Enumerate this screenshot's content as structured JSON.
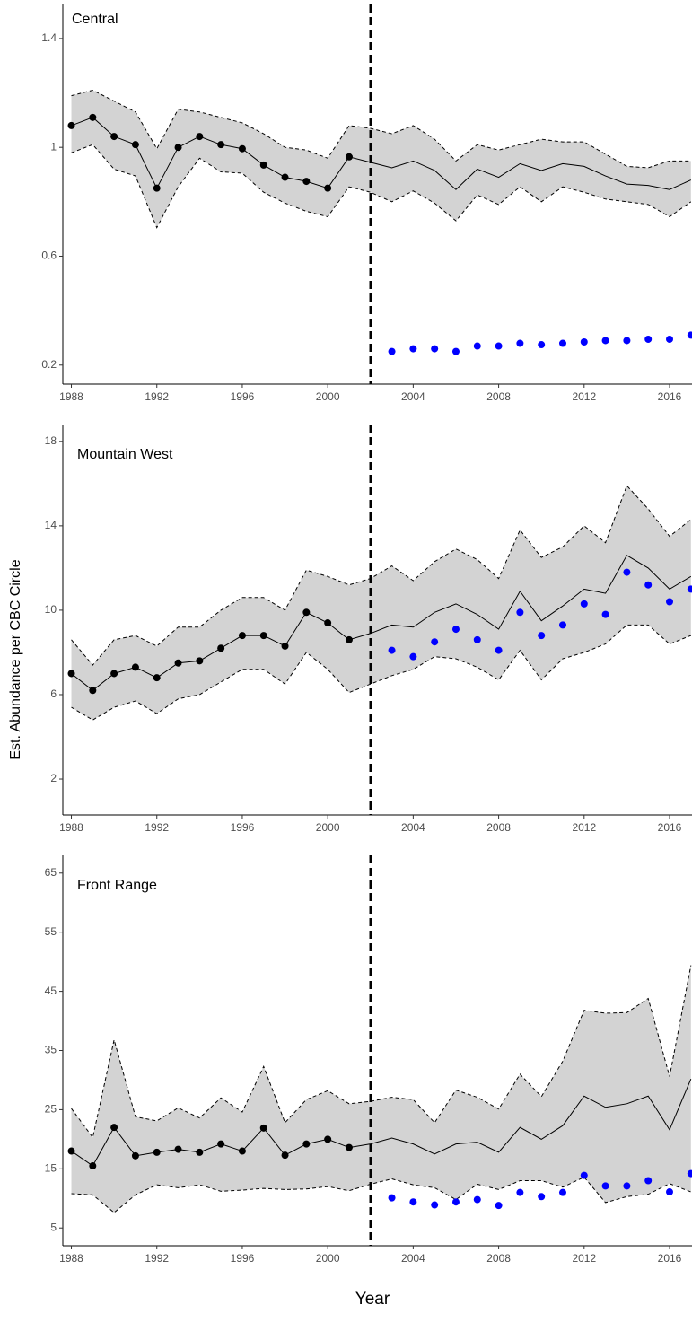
{
  "chart_data": [
    {
      "type": "line",
      "title": "Central",
      "x": [
        1988,
        1989,
        1990,
        1991,
        1992,
        1993,
        1994,
        1995,
        1996,
        1997,
        1998,
        1999,
        2000,
        2001,
        2002,
        2003,
        2004,
        2005,
        2006,
        2007,
        2008,
        2009,
        2010,
        2011,
        2012,
        2013,
        2014,
        2015,
        2016,
        2017
      ],
      "band": {
        "color": "#d3d3d3",
        "upper": [
          1.19,
          1.21,
          1.17,
          1.13,
          0.995,
          1.14,
          1.13,
          1.11,
          1.09,
          1.05,
          1.0,
          0.99,
          0.96,
          1.08,
          1.07,
          1.05,
          1.08,
          1.03,
          0.95,
          1.01,
          0.99,
          1.01,
          1.03,
          1.02,
          1.02,
          0.975,
          0.93,
          0.925,
          0.95,
          0.95
        ],
        "lower": [
          0.98,
          1.01,
          0.92,
          0.895,
          0.705,
          0.855,
          0.96,
          0.91,
          0.905,
          0.835,
          0.795,
          0.765,
          0.745,
          0.855,
          0.835,
          0.8,
          0.84,
          0.795,
          0.73,
          0.825,
          0.79,
          0.855,
          0.8,
          0.855,
          0.835,
          0.81,
          0.8,
          0.79,
          0.745,
          0.8
        ]
      },
      "series": [
        {
          "mark": "line",
          "color": "#000000",
          "values": [
            1.08,
            1.11,
            1.04,
            1.01,
            0.85,
            1.0,
            1.04,
            1.01,
            0.995,
            0.935,
            0.89,
            0.875,
            0.85,
            0.965,
            0.945,
            0.925,
            0.95,
            0.915,
            0.845,
            0.92,
            0.89,
            0.94,
            0.915,
            0.94,
            0.93,
            0.895,
            0.865,
            0.86,
            0.845,
            0.88
          ]
        },
        {
          "mark": "point",
          "color": "#000000",
          "values": [
            1.08,
            1.11,
            1.04,
            1.01,
            0.85,
            1.0,
            1.04,
            1.01,
            0.995,
            0.935,
            0.89,
            0.875,
            0.85,
            0.965,
            null,
            null,
            null,
            null,
            null,
            null,
            null,
            null,
            null,
            null,
            null,
            null,
            null,
            null,
            null,
            null
          ]
        },
        {
          "mark": "point",
          "color": "#0000ff",
          "values": [
            null,
            null,
            null,
            null,
            null,
            null,
            null,
            null,
            null,
            null,
            null,
            null,
            null,
            null,
            null,
            0.25,
            0.26,
            0.26,
            0.25,
            0.27,
            0.27,
            0.28,
            0.275,
            0.28,
            0.285,
            0.29,
            0.29,
            0.295,
            0.295,
            0.31
          ]
        }
      ],
      "reference_x": 2002,
      "xlim": [
        1987.6,
        2017.05
      ],
      "xticks": [
        1988,
        1992,
        1996,
        2000,
        2004,
        2008,
        2012,
        2016
      ],
      "ylim": [
        0.13,
        1.525
      ],
      "yticks": [
        0.2,
        0.6,
        1.0,
        1.4
      ]
    },
    {
      "type": "line",
      "title": "Mountain West",
      "y_label": "Est. Abundance per CBC Circle",
      "x": [
        1988,
        1989,
        1990,
        1991,
        1992,
        1993,
        1994,
        1995,
        1996,
        1997,
        1998,
        1999,
        2000,
        2001,
        2002,
        2003,
        2004,
        2005,
        2006,
        2007,
        2008,
        2009,
        2010,
        2011,
        2012,
        2013,
        2014,
        2015,
        2016,
        2017
      ],
      "band": {
        "color": "#d3d3d3",
        "upper": [
          8.6,
          7.4,
          8.6,
          8.8,
          8.3,
          9.2,
          9.2,
          10.0,
          10.6,
          10.6,
          10.0,
          11.9,
          11.6,
          11.2,
          11.5,
          12.1,
          11.4,
          12.3,
          12.9,
          12.4,
          11.5,
          13.8,
          12.5,
          13.0,
          14.0,
          13.2,
          15.9,
          14.8,
          13.5,
          14.3
        ],
        "lower": [
          5.4,
          4.8,
          5.4,
          5.7,
          5.1,
          5.8,
          6.0,
          6.6,
          7.2,
          7.2,
          6.5,
          8.0,
          7.2,
          6.1,
          6.5,
          6.9,
          7.2,
          7.8,
          7.7,
          7.3,
          6.7,
          8.1,
          6.7,
          7.7,
          8.0,
          8.4,
          9.3,
          9.3,
          8.4,
          8.8
        ]
      },
      "series": [
        {
          "mark": "line",
          "color": "#000000",
          "values": [
            7.0,
            6.2,
            7.0,
            7.3,
            6.8,
            7.5,
            7.6,
            8.2,
            8.8,
            8.8,
            8.3,
            9.9,
            9.4,
            8.6,
            8.9,
            9.3,
            9.2,
            9.9,
            10.3,
            9.8,
            9.1,
            10.9,
            9.5,
            10.2,
            11.0,
            10.8,
            12.6,
            12.0,
            11.0,
            11.6
          ]
        },
        {
          "mark": "point",
          "color": "#000000",
          "values": [
            7.0,
            6.2,
            7.0,
            7.3,
            6.8,
            7.5,
            7.6,
            8.2,
            8.8,
            8.8,
            8.3,
            9.9,
            9.4,
            8.6,
            null,
            null,
            null,
            null,
            null,
            null,
            null,
            null,
            null,
            null,
            null,
            null,
            null,
            null,
            null,
            null
          ]
        },
        {
          "mark": "point",
          "color": "#0000ff",
          "values": [
            null,
            null,
            null,
            null,
            null,
            null,
            null,
            null,
            null,
            null,
            null,
            null,
            null,
            null,
            null,
            8.1,
            7.8,
            8.5,
            9.1,
            8.6,
            8.1,
            9.9,
            8.8,
            9.3,
            10.3,
            9.8,
            11.8,
            11.2,
            10.4,
            11.0
          ]
        }
      ],
      "reference_x": 2002,
      "xlim": [
        1987.6,
        2017.05
      ],
      "xticks": [
        1988,
        1992,
        1996,
        2000,
        2004,
        2008,
        2012,
        2016
      ],
      "ylim": [
        0.3,
        18.8
      ],
      "yticks": [
        2,
        6,
        10,
        14,
        18
      ]
    },
    {
      "type": "line",
      "title": "Front Range",
      "x_label": "Year",
      "x": [
        1988,
        1989,
        1990,
        1991,
        1992,
        1993,
        1994,
        1995,
        1996,
        1997,
        1998,
        1999,
        2000,
        2001,
        2002,
        2003,
        2004,
        2005,
        2006,
        2007,
        2008,
        2009,
        2010,
        2011,
        2012,
        2013,
        2014,
        2015,
        2016,
        2017
      ],
      "band": {
        "color": "#d3d3d3",
        "upper": [
          25.2,
          20.3,
          36.8,
          23.8,
          23.1,
          25.3,
          23.6,
          27,
          24.6,
          32.3,
          22.8,
          26.7,
          28.2,
          26,
          26.4,
          27.1,
          26.7,
          22.8,
          28.3,
          27.1,
          25.1,
          31,
          27.2,
          33.2,
          41.8,
          41.3,
          41.4,
          43.8,
          30.6,
          49.4
        ],
        "lower": [
          10.8,
          10.6,
          7.6,
          10.6,
          12.3,
          11.8,
          12.3,
          11.2,
          11.4,
          11.7,
          11.5,
          11.6,
          12,
          11.3,
          12.4,
          13.3,
          12.3,
          11.8,
          9.8,
          12.4,
          11.5,
          13,
          13,
          11.9,
          13.6,
          9.3,
          10.3,
          10.7,
          12.5,
          11.1
        ]
      },
      "series": [
        {
          "mark": "line",
          "color": "#000000",
          "values": [
            18,
            15.5,
            22,
            17.2,
            17.8,
            18.3,
            17.8,
            19.2,
            18,
            21.9,
            17.3,
            19.2,
            20,
            18.6,
            19.2,
            20.2,
            19.2,
            17.5,
            19.2,
            19.5,
            17.8,
            22,
            20,
            22.3,
            27.3,
            25.4,
            26,
            27.3,
            21.6,
            30.2
          ]
        },
        {
          "mark": "point",
          "color": "#000000",
          "values": [
            18,
            15.5,
            22,
            17.2,
            17.8,
            18.3,
            17.8,
            19.2,
            18,
            21.9,
            17.3,
            19.2,
            20,
            18.6,
            null,
            null,
            null,
            null,
            null,
            null,
            null,
            null,
            null,
            null,
            null,
            null,
            null,
            null,
            null,
            null
          ]
        },
        {
          "mark": "point",
          "color": "#0000ff",
          "values": [
            null,
            null,
            null,
            null,
            null,
            null,
            null,
            null,
            null,
            null,
            null,
            null,
            null,
            null,
            null,
            10.1,
            9.4,
            8.9,
            9.4,
            9.8,
            8.8,
            11,
            10.3,
            11,
            13.9,
            12.1,
            12.1,
            13,
            11.1,
            14.2
          ]
        }
      ],
      "reference_x": 2002,
      "xlim": [
        1987.6,
        2017.05
      ],
      "xticks": [
        1988,
        1992,
        1996,
        2000,
        2004,
        2008,
        2012,
        2016
      ],
      "ylim": [
        2,
        68
      ],
      "yticks": [
        5,
        15,
        25,
        35,
        45,
        55,
        65
      ]
    }
  ]
}
